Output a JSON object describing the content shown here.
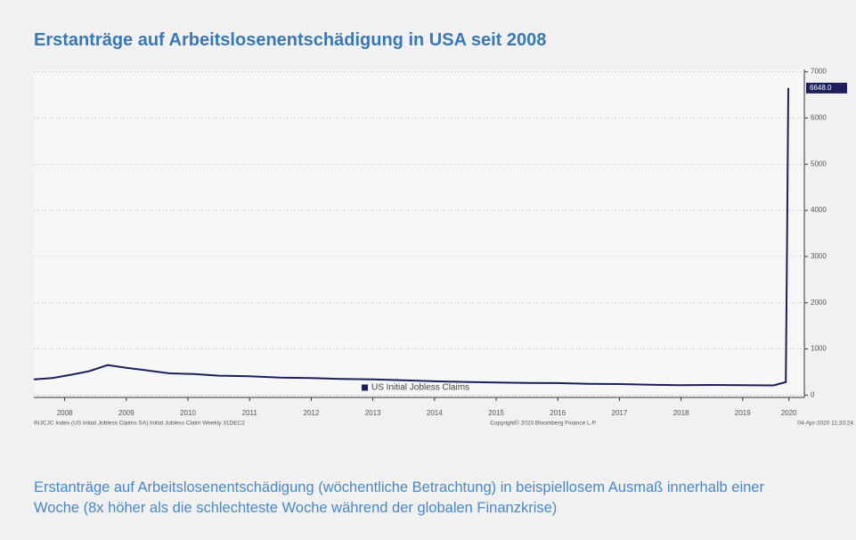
{
  "chart_data": {
    "type": "line",
    "title": "Erstanträge auf Arbeitslosenentschädigung in USA seit 2008",
    "caption": "Erstanträge auf Arbeitslosenentschädigung (wöchentliche Betrachtung) in beispiellosem Ausmaß innerhalb einer Woche (8x höher als die schlechteste Woche während der globalen Finanzkrise)",
    "footer_left": "INJCJC Index (US Initial Jobless Claims SA) Initial Jobless Claim Weekly 31DEC2",
    "footer_center": "Copyright© 2020 Bloomberg Finance L.P.",
    "footer_right": "04-Apr-2020 11:33:24",
    "x": [
      2008.0,
      2008.3,
      2008.6,
      2008.9,
      2009.2,
      2009.5,
      2009.8,
      2010.2,
      2010.6,
      2011.0,
      2011.5,
      2012.0,
      2012.5,
      2013.0,
      2013.5,
      2014.0,
      2014.5,
      2015.0,
      2015.5,
      2016.0,
      2016.5,
      2017.0,
      2017.5,
      2018.0,
      2018.5,
      2019.0,
      2019.5,
      2020.0,
      2020.2,
      2020.22,
      2020.24
    ],
    "series": [
      {
        "name": "US Initial Jobless Claims",
        "color": "#1c1f5a",
        "values": [
          340,
          370,
          440,
          520,
          650,
          590,
          540,
          470,
          455,
          420,
          410,
          380,
          370,
          350,
          340,
          320,
          300,
          285,
          275,
          265,
          260,
          245,
          240,
          225,
          215,
          220,
          215,
          210,
          282,
          3307,
          6648
        ],
        "value_labels": [
          null,
          null,
          null,
          null,
          null,
          null,
          null,
          null,
          null,
          null,
          null,
          null,
          null,
          null,
          null,
          null,
          null,
          null,
          null,
          null,
          null,
          null,
          null,
          null,
          null,
          null,
          null,
          null,
          null,
          null,
          "6648.0"
        ]
      }
    ],
    "xlim": [
      2008.0,
      2020.5
    ],
    "xticks": [
      {
        "value": 2008.5,
        "label": "2008"
      },
      {
        "value": 2009.5,
        "label": "2009"
      },
      {
        "value": 2010.5,
        "label": "2010"
      },
      {
        "value": 2011.5,
        "label": "2011"
      },
      {
        "value": 2012.5,
        "label": "2012"
      },
      {
        "value": 2013.5,
        "label": "2013"
      },
      {
        "value": 2014.5,
        "label": "2014"
      },
      {
        "value": 2015.5,
        "label": "2015"
      },
      {
        "value": 2016.5,
        "label": "2016"
      },
      {
        "value": 2017.5,
        "label": "2017"
      },
      {
        "value": 2018.5,
        "label": "2018"
      },
      {
        "value": 2019.5,
        "label": "2019"
      },
      {
        "value": 2020.25,
        "label": "2020"
      }
    ],
    "ylim": [
      -50,
      7050
    ],
    "yticks": [
      0,
      1000,
      2000,
      3000,
      4000,
      5000,
      6000,
      7000
    ],
    "grid": true,
    "legend": "bottom"
  }
}
